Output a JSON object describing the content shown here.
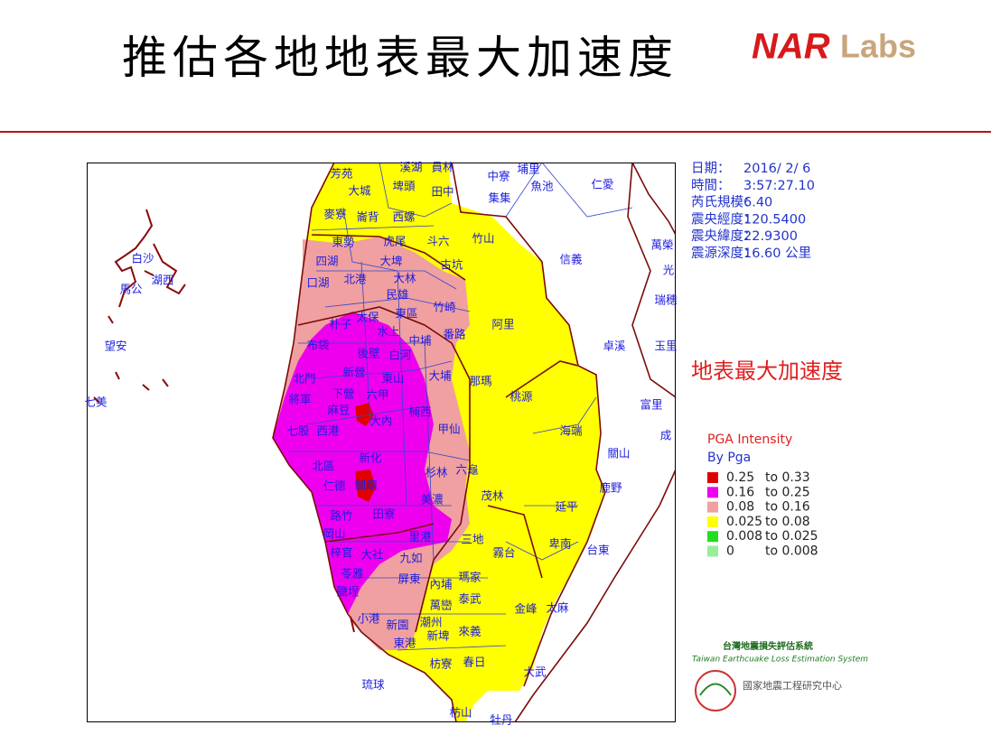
{
  "header": {
    "title": "推估各地地表最大加速度",
    "logo": {
      "part1": "NAR",
      "part2": "Labs"
    }
  },
  "info": [
    {
      "label": "日期：",
      "value": "2016/ 2/ 6"
    },
    {
      "label": "時間：",
      "value": "3:57:27.10"
    },
    {
      "label": "芮氏規模：",
      "value": "6.40"
    },
    {
      "label": "震央經度：",
      "value": "120.5400"
    },
    {
      "label": "震央緯度：",
      "value": "22.9300"
    },
    {
      "label": "震源深度：",
      "value": "16.60 公里"
    }
  ],
  "map": {
    "heading": "地表最大加速度",
    "labels": [
      "芳苑",
      "溪湖",
      "員林",
      "大城",
      "埤頭",
      "田中",
      "中寮",
      "埔里",
      "魚池",
      "集集",
      "仁愛",
      "麥寮",
      "崙背",
      "西螺",
      "竹山",
      "東勢",
      "虎尾",
      "斗六",
      "信義",
      "萬榮",
      "四湖",
      "大埤",
      "古坑",
      "口湖",
      "北港",
      "大林",
      "民雄",
      "竹崎",
      "朴子",
      "太保",
      "東區",
      "阿里",
      "水上",
      "布袋",
      "中埔",
      "番路",
      "卓溪",
      "後壁",
      "白河",
      "北門",
      "新營",
      "東山",
      "大埔",
      "那瑪",
      "將軍",
      "下營",
      "六甲",
      "桃源",
      "富里",
      "麻豆",
      "楠西",
      "七股",
      "西港",
      "大內",
      "甲仙",
      "海端",
      "關山",
      "北區",
      "新化",
      "杉林",
      "六龜",
      "仁德",
      "關廟",
      "美濃",
      "茂林",
      "鹿野",
      "延平",
      "路竹",
      "田寮",
      "岡山",
      "里港",
      "三地",
      "霧台",
      "卑南",
      "台東",
      "梓官",
      "大社",
      "九如",
      "屏東",
      "瑪家",
      "苓雅",
      "內埔",
      "鹽埕",
      "萬巒",
      "泰武",
      "潮州",
      "金峰",
      "太麻",
      "小港",
      "新園",
      "來義",
      "新埤",
      "東港",
      "枋寮",
      "春日",
      "大武",
      "琉球",
      "枋山",
      "牡丹",
      "白沙",
      "馬公",
      "湖西",
      "望安",
      "七美",
      "光",
      "瑞穗",
      "玉里",
      "成"
    ]
  },
  "legend": {
    "title": "PGA Intensity",
    "subtitle": "By Pga",
    "items": [
      {
        "from": "0.25",
        "to": "to 0.33",
        "color": "#e00000"
      },
      {
        "from": "0.16",
        "to": "to 0.25",
        "color": "#ee00ee"
      },
      {
        "from": "0.08",
        "to": "to 0.16",
        "color": "#f0a0a0"
      },
      {
        "from": "0.025",
        "to": "to 0.08",
        "color": "#ffff00"
      },
      {
        "from": "0.008",
        "to": "to 0.025",
        "color": "#22dd22"
      },
      {
        "from": "0",
        "to": "to 0.008",
        "color": "#99ee99"
      }
    ]
  },
  "footer": {
    "system_zh": "台灣地震損失評估系統",
    "system_en": "Taiwan Earthcuake Loss Estimation System",
    "institute": "國家地震工程研究中心"
  }
}
